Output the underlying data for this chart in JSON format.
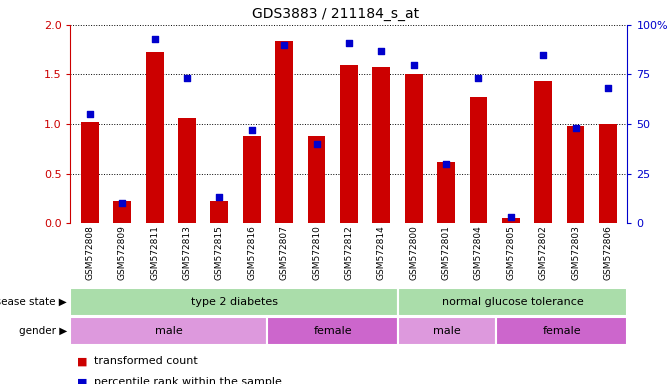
{
  "title": "GDS3883 / 211184_s_at",
  "samples": [
    "GSM572808",
    "GSM572809",
    "GSM572811",
    "GSM572813",
    "GSM572815",
    "GSM572816",
    "GSM572807",
    "GSM572810",
    "GSM572812",
    "GSM572814",
    "GSM572800",
    "GSM572801",
    "GSM572804",
    "GSM572805",
    "GSM572802",
    "GSM572803",
    "GSM572806"
  ],
  "bar_values": [
    1.02,
    0.22,
    1.73,
    1.06,
    0.22,
    0.88,
    1.84,
    0.88,
    1.6,
    1.58,
    1.5,
    0.62,
    1.27,
    0.05,
    1.43,
    0.98,
    1.0
  ],
  "dot_values": [
    55,
    10,
    93,
    73,
    13,
    47,
    90,
    40,
    91,
    87,
    80,
    30,
    73,
    3,
    85,
    48,
    68
  ],
  "bar_color": "#cc0000",
  "dot_color": "#0000cc",
  "ylim_left": [
    0,
    2
  ],
  "ylim_right": [
    0,
    100
  ],
  "yticks_left": [
    0,
    0.5,
    1.0,
    1.5,
    2.0
  ],
  "yticks_right": [
    0,
    25,
    50,
    75,
    100
  ],
  "disease_label": "disease state",
  "gender_label": "gender",
  "legend_bar": "transformed count",
  "legend_dot": "percentile rank within the sample",
  "dot_size": 22,
  "bar_width": 0.55,
  "background_color": "#ffffff",
  "tick_label_fontsize": 6.5,
  "title_fontsize": 10,
  "xtick_bg": "#dddddd",
  "disease_color": "#aaddaa",
  "disease_divider": 10,
  "gender_groups": [
    {
      "label": "male",
      "start": 0,
      "end": 6,
      "color": "#dd99dd"
    },
    {
      "label": "female",
      "start": 6,
      "end": 10,
      "color": "#cc66cc"
    },
    {
      "label": "male",
      "start": 10,
      "end": 13,
      "color": "#dd99dd"
    },
    {
      "label": "female",
      "start": 13,
      "end": 17,
      "color": "#cc66cc"
    }
  ],
  "ds_groups": [
    {
      "label": "type 2 diabetes",
      "start": 0,
      "end": 10
    },
    {
      "label": "normal glucose tolerance",
      "start": 10,
      "end": 17
    }
  ]
}
